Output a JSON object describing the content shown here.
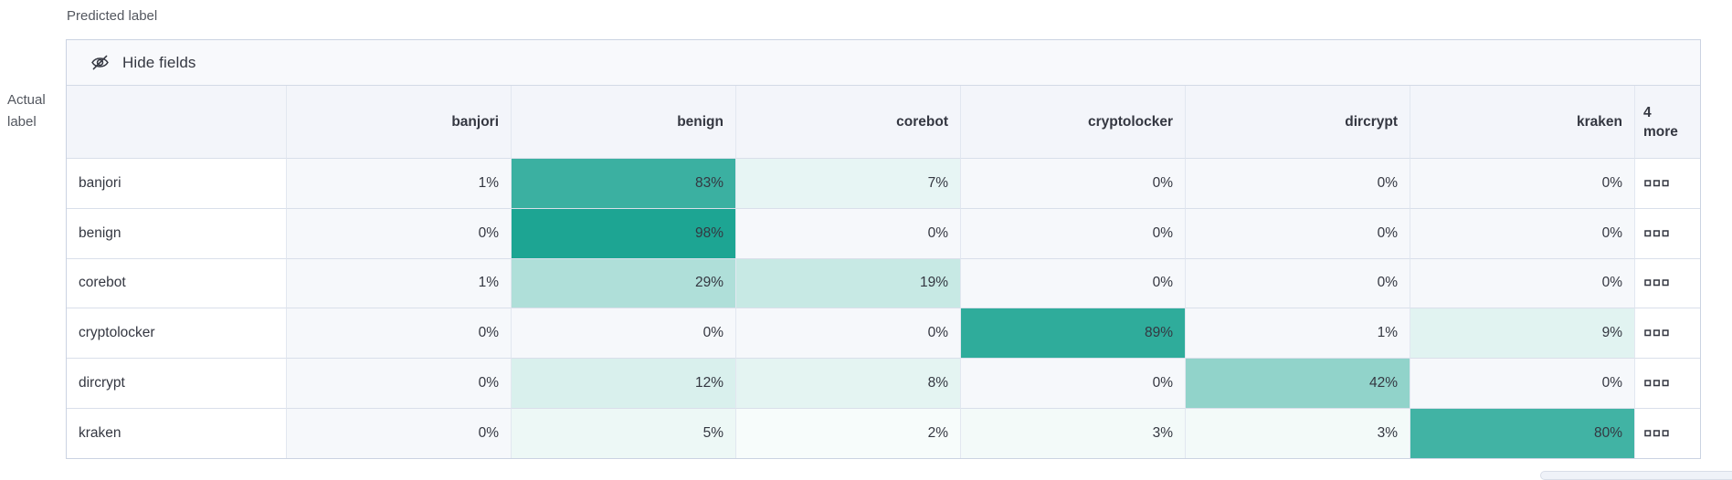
{
  "axis": {
    "predicted_label": "Predicted label",
    "actual_label_line1": "Actual",
    "actual_label_line2": "label"
  },
  "toolbar": {
    "hide_fields_label": "Hide fields",
    "hide_fields_icon": "eye-closed-icon"
  },
  "chart_data": {
    "type": "heatmap",
    "title": "Confusion matrix: actual label vs predicted label",
    "unit": "%",
    "columns": [
      "banjori",
      "benign",
      "corebot",
      "cryptolocker",
      "dircrypt",
      "kraken"
    ],
    "extra_column": {
      "line1": "4",
      "line2": "more",
      "row_action_icon": "boxes-horizontal-icon"
    },
    "rows": [
      "banjori",
      "benign",
      "corebot",
      "cryptolocker",
      "dircrypt",
      "kraken"
    ],
    "values_percent": [
      [
        1,
        83,
        7,
        0,
        0,
        0
      ],
      [
        0,
        98,
        0,
        0,
        0,
        0
      ],
      [
        1,
        29,
        19,
        0,
        0,
        0
      ],
      [
        0,
        0,
        0,
        89,
        1,
        9
      ],
      [
        0,
        12,
        8,
        0,
        42,
        0
      ],
      [
        0,
        5,
        2,
        3,
        3,
        80
      ]
    ],
    "value_range": [
      0,
      100
    ],
    "legend": "none",
    "colors": {
      "heat_base": "#19a391",
      "zero_cell_bg": "#f6f8fb",
      "header_bg": "#f3f5fa",
      "toolbar_bg": "#f8f9fc",
      "border": "#d3dae6",
      "text": "#343741",
      "axis_text": "#53575f"
    }
  }
}
